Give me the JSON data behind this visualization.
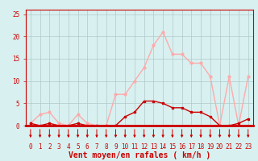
{
  "hours": [
    0,
    1,
    2,
    3,
    4,
    5,
    6,
    7,
    8,
    9,
    10,
    11,
    12,
    13,
    14,
    15,
    16,
    17,
    18,
    19,
    20,
    21,
    22,
    23
  ],
  "rafales": [
    0.5,
    2.5,
    3.0,
    0.5,
    0,
    2.5,
    0.5,
    0,
    0,
    7,
    7,
    10,
    13,
    18,
    21,
    16,
    16,
    14,
    14,
    11,
    0,
    11,
    0,
    11
  ],
  "moyen": [
    0.5,
    0,
    0.5,
    0,
    0,
    0.5,
    0,
    0,
    0,
    0,
    2,
    3,
    5.5,
    5.5,
    5,
    4,
    4,
    3,
    3,
    2,
    0,
    0,
    0.5,
    1.5
  ],
  "color_rafales": "#ffaaaa",
  "color_moyen": "#cc0000",
  "bg_color": "#d8f0f0",
  "grid_color": "#b0c8c8",
  "xlabel": "Vent moyen/en rafales ( km/h )",
  "ylabel_ticks": [
    0,
    5,
    10,
    15,
    20,
    25
  ],
  "ylim": [
    0,
    26
  ],
  "xlim": [
    -0.5,
    23.5
  ],
  "arrow_color": "#cc0000",
  "axis_line_color": "#cc0000",
  "tick_label_color": "#cc0000",
  "xlabel_color": "#cc0000",
  "tick_fontsize": 5.5,
  "xlabel_fontsize": 7.0
}
